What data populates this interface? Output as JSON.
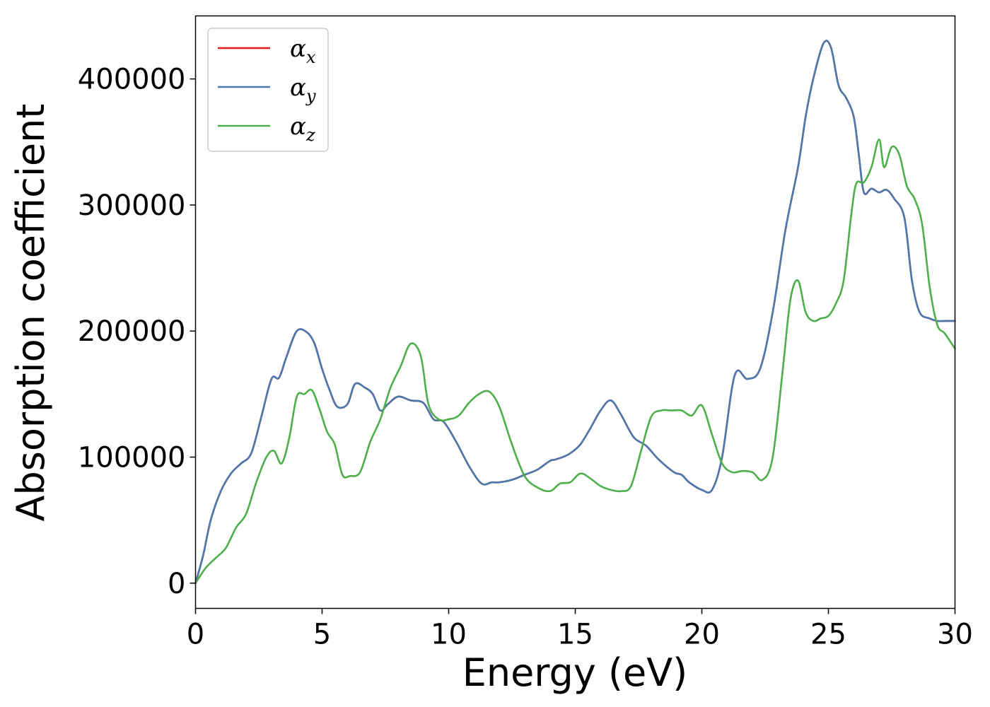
{
  "chart_data": {
    "type": "line",
    "xlabel": "Energy (eV)",
    "ylabel": "Absorption coefficient",
    "xlim": [
      0,
      30
    ],
    "ylim": [
      -20000,
      450000
    ],
    "x_ticks": [
      0,
      5,
      10,
      15,
      20,
      25,
      30
    ],
    "y_ticks": [
      0,
      100000,
      200000,
      300000,
      400000
    ],
    "grid": false,
    "legend_position": "top-left",
    "series": [
      {
        "name": "αx",
        "symbol": "α",
        "subscript": "x",
        "color": "#e41a1c",
        "x": [
          0,
          0.3,
          0.6,
          1,
          1.4,
          1.8,
          2.2,
          2.6,
          3,
          3.3,
          3.6,
          4,
          4.4,
          4.7,
          5,
          5.3,
          5.6,
          6,
          6.3,
          6.7,
          7,
          7.3,
          7.6,
          8,
          8.5,
          9,
          9.4,
          9.8,
          10.3,
          10.8,
          11.3,
          11.7,
          12,
          12.5,
          13,
          13.5,
          14,
          14.2,
          14.5,
          14.8,
          15.2,
          15.6,
          16,
          16.4,
          16.8,
          17.3,
          17.8,
          18.3,
          18.9,
          19.2,
          19.5,
          20,
          20.4,
          20.8,
          21.3,
          21.8,
          22.3,
          22.8,
          23.3,
          23.8,
          24.1,
          24.4,
          24.8,
          25.1,
          25.4,
          25.7,
          26,
          26.2,
          26.4,
          26.7,
          27,
          27.3,
          27.6,
          28,
          28.3,
          28.6,
          29,
          29.3,
          29.6,
          30
        ],
        "values": [
          0,
          22000,
          50000,
          73000,
          87000,
          95000,
          103000,
          132000,
          162000,
          163000,
          180000,
          200000,
          199000,
          190000,
          170000,
          153000,
          140000,
          142000,
          158000,
          155000,
          150000,
          137000,
          142000,
          148000,
          145000,
          143000,
          130000,
          128000,
          112000,
          93000,
          79000,
          80000,
          80000,
          82000,
          86000,
          90000,
          97000,
          98000,
          100000,
          103000,
          110000,
          123000,
          137000,
          145000,
          134000,
          116000,
          109000,
          98000,
          88000,
          86000,
          80000,
          74000,
          74000,
          100000,
          165000,
          162000,
          170000,
          215000,
          280000,
          330000,
          370000,
          400000,
          428000,
          425000,
          395000,
          385000,
          370000,
          340000,
          310000,
          313000,
          310000,
          312000,
          305000,
          290000,
          240000,
          215000,
          210000,
          208000,
          208000,
          208000
        ]
      },
      {
        "name": "αy",
        "symbol": "α",
        "subscript": "y",
        "color": "#4a79ae",
        "x": [
          0,
          0.3,
          0.6,
          1,
          1.4,
          1.8,
          2.2,
          2.6,
          3,
          3.3,
          3.6,
          4,
          4.4,
          4.7,
          5,
          5.3,
          5.6,
          6,
          6.3,
          6.7,
          7,
          7.3,
          7.6,
          8,
          8.5,
          9,
          9.4,
          9.8,
          10.3,
          10.8,
          11.3,
          11.7,
          12,
          12.5,
          13,
          13.5,
          14,
          14.2,
          14.5,
          14.8,
          15.2,
          15.6,
          16,
          16.4,
          16.8,
          17.3,
          17.8,
          18.3,
          18.9,
          19.2,
          19.5,
          20,
          20.4,
          20.8,
          21.3,
          21.8,
          22.3,
          22.8,
          23.3,
          23.8,
          24.1,
          24.4,
          24.8,
          25.1,
          25.4,
          25.7,
          26,
          26.2,
          26.4,
          26.7,
          27,
          27.3,
          27.6,
          28,
          28.3,
          28.6,
          29,
          29.3,
          29.6,
          30
        ],
        "values": [
          0,
          22000,
          50000,
          73000,
          87000,
          95000,
          103000,
          132000,
          162000,
          163000,
          180000,
          200000,
          199000,
          190000,
          170000,
          153000,
          140000,
          142000,
          158000,
          155000,
          150000,
          137000,
          142000,
          148000,
          145000,
          143000,
          130000,
          128000,
          112000,
          93000,
          79000,
          80000,
          80000,
          82000,
          86000,
          90000,
          97000,
          98000,
          100000,
          103000,
          110000,
          123000,
          137000,
          145000,
          134000,
          116000,
          109000,
          98000,
          88000,
          86000,
          80000,
          74000,
          74000,
          100000,
          165000,
          162000,
          170000,
          215000,
          280000,
          330000,
          370000,
          400000,
          428000,
          425000,
          395000,
          385000,
          370000,
          340000,
          310000,
          313000,
          310000,
          312000,
          305000,
          290000,
          240000,
          215000,
          210000,
          208000,
          208000,
          208000
        ]
      },
      {
        "name": "αz",
        "symbol": "α",
        "subscript": "z",
        "color": "#4daf4a",
        "x": [
          0,
          0.4,
          0.8,
          1.2,
          1.6,
          2,
          2.4,
          2.8,
          3.1,
          3.4,
          3.7,
          4,
          4.3,
          4.6,
          4.9,
          5.2,
          5.5,
          5.8,
          6.1,
          6.5,
          6.9,
          7.3,
          7.7,
          8.1,
          8.5,
          8.9,
          9.2,
          9.6,
          10,
          10.4,
          10.8,
          11.2,
          11.6,
          12,
          12.5,
          13,
          13.5,
          14,
          14.4,
          14.8,
          15.2,
          15.6,
          16,
          16.4,
          16.8,
          17.2,
          17.6,
          18,
          18.4,
          18.8,
          19.2,
          19.6,
          20,
          20.4,
          20.8,
          21.2,
          21.6,
          22,
          22.4,
          22.8,
          23.2,
          23.5,
          23.8,
          24.1,
          24.4,
          24.7,
          25,
          25.3,
          25.6,
          25.9,
          26.1,
          26.4,
          26.7,
          27,
          27.2,
          27.5,
          27.8,
          28.1,
          28.4,
          28.7,
          29,
          29.3,
          29.6,
          30
        ],
        "values": [
          0,
          12000,
          20000,
          28000,
          44000,
          55000,
          80000,
          100000,
          105000,
          95000,
          115000,
          148000,
          150000,
          153000,
          138000,
          120000,
          110000,
          86000,
          85000,
          88000,
          112000,
          130000,
          155000,
          172000,
          190000,
          180000,
          142000,
          130000,
          130000,
          133000,
          143000,
          150000,
          152000,
          140000,
          110000,
          85000,
          76000,
          73000,
          79000,
          80000,
          87000,
          83000,
          77000,
          74000,
          73000,
          77000,
          105000,
          132000,
          137000,
          137000,
          137000,
          133000,
          141000,
          118000,
          95000,
          88000,
          89000,
          88000,
          82000,
          100000,
          170000,
          225000,
          240000,
          215000,
          208000,
          210000,
          212000,
          222000,
          240000,
          292000,
          317000,
          318000,
          330000,
          352000,
          330000,
          346000,
          340000,
          315000,
          305000,
          285000,
          235000,
          205000,
          198000,
          186000
        ]
      }
    ]
  }
}
